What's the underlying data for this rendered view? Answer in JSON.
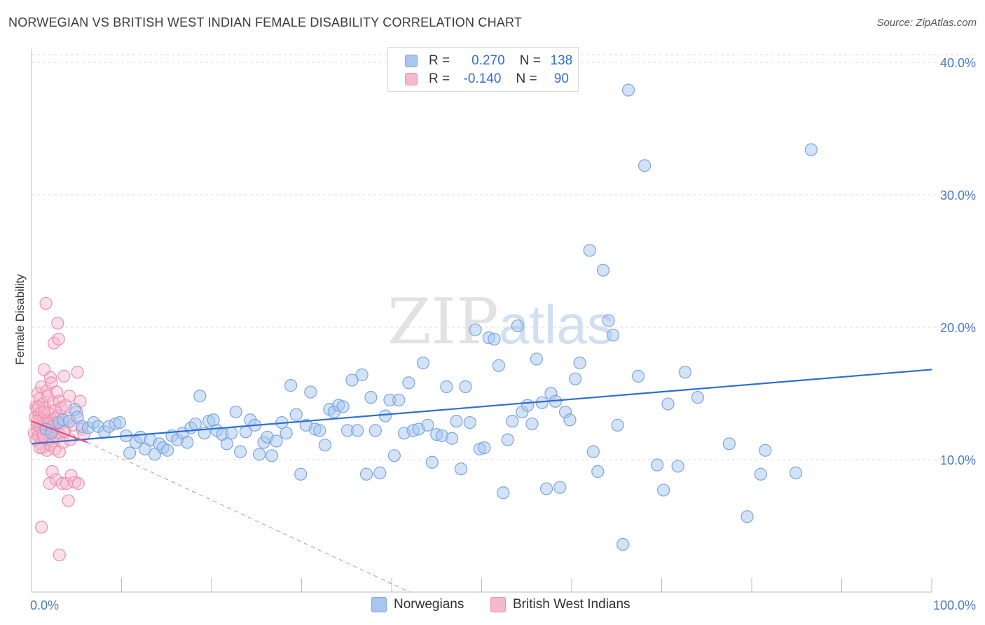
{
  "title": "NORWEGIAN VS BRITISH WEST INDIAN FEMALE DISABILITY CORRELATION CHART",
  "source": "Source: ZipAtlas.com",
  "watermark": {
    "zip": "ZIP",
    "atlas": "atlas"
  },
  "colors": {
    "blue_fill": "#a8c6ef",
    "blue_stroke": "#7aa6e0",
    "blue_line": "#2d6fd0",
    "pink_fill": "#f5b8cc",
    "pink_stroke": "#ee8fb0",
    "pink_line": "#e24d82",
    "grid": "#dddddd",
    "tick_text": "#4a79c8"
  },
  "legend": {
    "rows": [
      {
        "r_label": "R =",
        "r_value": "0.270",
        "n_label": "N =",
        "n_value": "138"
      },
      {
        "r_label": "R =",
        "r_value": "-0.140",
        "n_label": "N =",
        "n_value": "90"
      }
    ]
  },
  "bottom_legend": [
    "Norwegians",
    "British West Indians"
  ],
  "chart_data": {
    "type": "scatter",
    "ylabel": "Female Disability",
    "xlim": [
      0,
      100
    ],
    "ylim": [
      0,
      41
    ],
    "x_tick_labels": [
      {
        "x": 0,
        "label": "0.0%"
      },
      {
        "x": 100,
        "label": "100.0%"
      }
    ],
    "y_ticks": [
      {
        "y": 10,
        "label": "10.0%"
      },
      {
        "y": 20,
        "label": "20.0%"
      },
      {
        "y": 30,
        "label": "30.0%"
      },
      {
        "y": 40,
        "label": "40.0%"
      }
    ],
    "series": [
      {
        "name": "Norwegians",
        "r": 0.27,
        "n": 138,
        "trend": {
          "x": [
            0,
            100
          ],
          "y": [
            11.2,
            16.8
          ]
        },
        "points": [
          [
            1.6,
            12.3
          ],
          [
            2.2,
            12.0
          ],
          [
            3.0,
            12.8
          ],
          [
            3.5,
            13.0
          ],
          [
            4.2,
            12.9
          ],
          [
            4.8,
            13.8
          ],
          [
            5.1,
            13.2
          ],
          [
            5.6,
            12.5
          ],
          [
            6.3,
            12.4
          ],
          [
            6.9,
            12.8
          ],
          [
            7.4,
            12.5
          ],
          [
            8.1,
            12.1
          ],
          [
            8.6,
            12.5
          ],
          [
            9.3,
            12.7
          ],
          [
            9.8,
            12.8
          ],
          [
            10.5,
            11.8
          ],
          [
            10.9,
            10.5
          ],
          [
            11.6,
            11.3
          ],
          [
            12.1,
            11.7
          ],
          [
            12.6,
            10.8
          ],
          [
            13.2,
            11.5
          ],
          [
            13.7,
            10.4
          ],
          [
            14.2,
            11.2
          ],
          [
            14.6,
            10.9
          ],
          [
            15.1,
            10.7
          ],
          [
            15.6,
            11.8
          ],
          [
            16.2,
            11.5
          ],
          [
            16.8,
            12.0
          ],
          [
            17.3,
            11.3
          ],
          [
            17.7,
            12.4
          ],
          [
            18.2,
            12.7
          ],
          [
            18.7,
            14.8
          ],
          [
            19.2,
            12.0
          ],
          [
            19.7,
            12.9
          ],
          [
            20.2,
            13.0
          ],
          [
            20.6,
            12.2
          ],
          [
            21.2,
            11.9
          ],
          [
            21.7,
            11.2
          ],
          [
            22.2,
            12.0
          ],
          [
            22.7,
            13.6
          ],
          [
            23.2,
            10.6
          ],
          [
            23.8,
            12.1
          ],
          [
            24.3,
            13.0
          ],
          [
            24.8,
            12.6
          ],
          [
            25.3,
            10.4
          ],
          [
            25.8,
            11.3
          ],
          [
            26.2,
            11.7
          ],
          [
            26.7,
            10.3
          ],
          [
            27.2,
            11.4
          ],
          [
            27.8,
            12.8
          ],
          [
            28.3,
            12.0
          ],
          [
            28.8,
            15.6
          ],
          [
            29.4,
            13.4
          ],
          [
            29.9,
            8.9
          ],
          [
            30.5,
            12.6
          ],
          [
            31.0,
            15.1
          ],
          [
            31.5,
            12.3
          ],
          [
            32.0,
            12.2
          ],
          [
            32.6,
            11.1
          ],
          [
            33.1,
            13.8
          ],
          [
            33.6,
            13.6
          ],
          [
            34.1,
            14.1
          ],
          [
            34.6,
            14.0
          ],
          [
            35.1,
            12.2
          ],
          [
            35.6,
            16.0
          ],
          [
            36.2,
            12.2
          ],
          [
            36.7,
            16.4
          ],
          [
            37.2,
            8.9
          ],
          [
            37.7,
            14.7
          ],
          [
            38.2,
            12.2
          ],
          [
            38.7,
            9.0
          ],
          [
            39.3,
            13.3
          ],
          [
            39.8,
            14.5
          ],
          [
            40.3,
            10.3
          ],
          [
            40.8,
            14.5
          ],
          [
            41.4,
            12.0
          ],
          [
            41.9,
            15.8
          ],
          [
            42.4,
            12.2
          ],
          [
            43.0,
            12.3
          ],
          [
            43.5,
            17.3
          ],
          [
            44.0,
            12.6
          ],
          [
            44.5,
            9.8
          ],
          [
            45.0,
            11.9
          ],
          [
            45.6,
            11.8
          ],
          [
            46.1,
            15.5
          ],
          [
            46.7,
            11.6
          ],
          [
            47.2,
            12.9
          ],
          [
            47.7,
            9.3
          ],
          [
            48.2,
            15.5
          ],
          [
            48.7,
            12.8
          ],
          [
            49.3,
            19.8
          ],
          [
            49.8,
            10.8
          ],
          [
            50.3,
            10.9
          ],
          [
            50.8,
            19.2
          ],
          [
            51.4,
            19.1
          ],
          [
            51.9,
            17.1
          ],
          [
            52.4,
            7.5
          ],
          [
            52.9,
            11.5
          ],
          [
            53.4,
            12.9
          ],
          [
            54.0,
            20.1
          ],
          [
            54.5,
            13.6
          ],
          [
            55.1,
            14.1
          ],
          [
            55.6,
            12.7
          ],
          [
            56.1,
            17.6
          ],
          [
            56.7,
            14.3
          ],
          [
            57.2,
            7.8
          ],
          [
            57.7,
            15.0
          ],
          [
            58.2,
            14.4
          ],
          [
            58.7,
            7.9
          ],
          [
            59.3,
            13.6
          ],
          [
            59.8,
            13.0
          ],
          [
            60.4,
            16.1
          ],
          [
            60.9,
            17.3
          ],
          [
            62.0,
            25.8
          ],
          [
            62.4,
            10.6
          ],
          [
            62.9,
            9.1
          ],
          [
            63.5,
            24.3
          ],
          [
            64.1,
            20.5
          ],
          [
            64.6,
            19.4
          ],
          [
            65.1,
            12.6
          ],
          [
            65.7,
            3.6
          ],
          [
            66.3,
            37.9
          ],
          [
            67.4,
            16.3
          ],
          [
            68.1,
            32.2
          ],
          [
            69.5,
            9.6
          ],
          [
            70.2,
            7.7
          ],
          [
            70.7,
            14.2
          ],
          [
            71.8,
            9.5
          ],
          [
            72.6,
            16.6
          ],
          [
            74.0,
            14.7
          ],
          [
            77.5,
            11.2
          ],
          [
            79.5,
            5.7
          ],
          [
            81.0,
            8.9
          ],
          [
            81.5,
            10.7
          ],
          [
            86.6,
            33.4
          ],
          [
            84.9,
            9.0
          ]
        ]
      },
      {
        "name": "British West Indians",
        "r": -0.14,
        "n": 90,
        "trend": {
          "x": [
            0,
            6.2
          ],
          "y": [
            12.9,
            11.3
          ]
        },
        "trend_extension": {
          "x": [
            6.2,
            42
          ],
          "y": [
            11.3,
            0
          ]
        },
        "points": [
          [
            0.3,
            12.0
          ],
          [
            0.4,
            13.2
          ],
          [
            0.5,
            14.0
          ],
          [
            0.5,
            11.5
          ],
          [
            0.6,
            12.6
          ],
          [
            0.6,
            13.8
          ],
          [
            0.7,
            12.2
          ],
          [
            0.7,
            15.0
          ],
          [
            0.8,
            11.8
          ],
          [
            0.8,
            13.4
          ],
          [
            0.9,
            12.9
          ],
          [
            0.9,
            14.6
          ],
          [
            1.0,
            12.4
          ],
          [
            1.0,
            11.2
          ],
          [
            1.1,
            13.6
          ],
          [
            1.1,
            15.5
          ],
          [
            1.2,
            12.0
          ],
          [
            1.2,
            10.9
          ],
          [
            1.3,
            13.1
          ],
          [
            1.3,
            14.2
          ],
          [
            1.4,
            12.7
          ],
          [
            1.4,
            16.8
          ],
          [
            1.5,
            11.6
          ],
          [
            1.5,
            13.9
          ],
          [
            1.6,
            12.3
          ],
          [
            1.6,
            21.8
          ],
          [
            1.7,
            15.2
          ],
          [
            1.7,
            10.7
          ],
          [
            1.8,
            12.9
          ],
          [
            1.8,
            14.8
          ],
          [
            1.9,
            11.9
          ],
          [
            1.9,
            13.5
          ],
          [
            2.0,
            12.5
          ],
          [
            2.0,
            8.2
          ],
          [
            2.1,
            16.2
          ],
          [
            2.1,
            11.1
          ],
          [
            2.2,
            13.0
          ],
          [
            2.2,
            15.8
          ],
          [
            2.3,
            12.1
          ],
          [
            2.3,
            9.1
          ],
          [
            2.4,
            14.3
          ],
          [
            2.4,
            11.4
          ],
          [
            2.5,
            12.8
          ],
          [
            2.5,
            18.8
          ],
          [
            2.6,
            13.7
          ],
          [
            2.6,
            10.8
          ],
          [
            2.7,
            12.4
          ],
          [
            2.7,
            8.5
          ],
          [
            2.8,
            15.1
          ],
          [
            2.8,
            11.7
          ],
          [
            2.9,
            13.3
          ],
          [
            2.9,
            20.3
          ],
          [
            3.0,
            12.0
          ],
          [
            3.0,
            19.1
          ],
          [
            3.1,
            14.4
          ],
          [
            3.1,
            10.6
          ],
          [
            3.2,
            12.7
          ],
          [
            3.3,
            13.9
          ],
          [
            3.4,
            8.2
          ],
          [
            3.5,
            11.3
          ],
          [
            3.6,
            16.3
          ],
          [
            3.7,
            12.2
          ],
          [
            3.8,
            14.1
          ],
          [
            3.9,
            8.2
          ],
          [
            4.0,
            13.1
          ],
          [
            4.1,
            6.9
          ],
          [
            4.2,
            14.8
          ],
          [
            4.3,
            11.5
          ],
          [
            4.4,
            8.8
          ],
          [
            4.6,
            12.6
          ],
          [
            4.8,
            8.3
          ],
          [
            5.0,
            13.6
          ],
          [
            5.1,
            16.6
          ],
          [
            5.2,
            8.2
          ],
          [
            5.4,
            14.4
          ],
          [
            5.6,
            12.3
          ],
          [
            5.8,
            11.9
          ],
          [
            1.1,
            4.9
          ],
          [
            3.1,
            2.8
          ],
          [
            0.9,
            10.9
          ],
          [
            1.6,
            12.9
          ],
          [
            2.2,
            12.2
          ],
          [
            0.6,
            12.9
          ],
          [
            1.3,
            11.8
          ],
          [
            2.6,
            13.1
          ],
          [
            0.8,
            14.0
          ],
          [
            1.9,
            12.7
          ],
          [
            1.4,
            13.6
          ],
          [
            2.3,
            12.5
          ],
          [
            3.6,
            12.1
          ]
        ]
      }
    ]
  }
}
